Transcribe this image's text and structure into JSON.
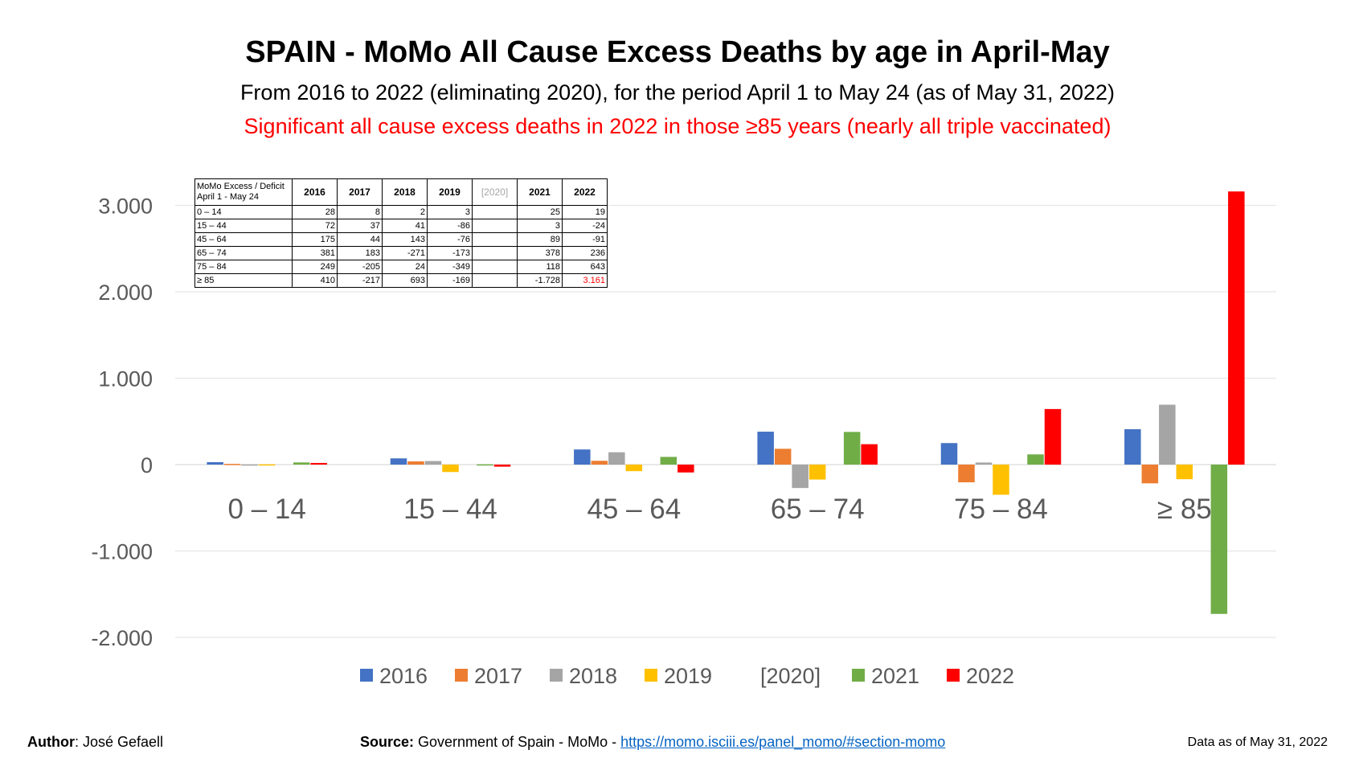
{
  "title": "SPAIN - MoMo All Cause Excess Deaths by age in April-May",
  "subtitle": "From 2016 to 2022 (eliminating 2020), for the period April 1 to May 24 (as of May 31, 2022)",
  "highlight": "Significant all cause excess deaths in 2022 in those ≥85 years (nearly all triple vaccinated)",
  "chart_data": {
    "type": "bar",
    "categories": [
      "0 – 14",
      "15 – 44",
      "45 – 64",
      "65 – 74",
      "75 – 84",
      "≥ 85"
    ],
    "series": [
      {
        "name": "2016",
        "color": "#4472c4",
        "values": [
          28,
          72,
          175,
          381,
          249,
          410
        ]
      },
      {
        "name": "2017",
        "color": "#ed7d31",
        "values": [
          8,
          37,
          44,
          183,
          -205,
          -217
        ]
      },
      {
        "name": "2018",
        "color": "#a5a5a5",
        "values": [
          2,
          41,
          143,
          -271,
          24,
          693
        ]
      },
      {
        "name": "2019",
        "color": "#ffc000",
        "values": [
          3,
          -86,
          -76,
          -173,
          -349,
          -169
        ]
      },
      {
        "name": "[2020]",
        "color": null,
        "values": [
          null,
          null,
          null,
          null,
          null,
          null
        ]
      },
      {
        "name": "2021",
        "color": "#70ad47",
        "values": [
          25,
          3,
          89,
          378,
          118,
          -1728
        ]
      },
      {
        "name": "2022",
        "color": "#ff0000",
        "values": [
          19,
          -24,
          -91,
          236,
          643,
          3161
        ]
      }
    ],
    "y_ticks": [
      3000,
      2000,
      1000,
      0,
      -1000,
      -2000
    ],
    "y_tick_labels": [
      "3.000",
      "2.000",
      "1.000",
      "0",
      "-1.000",
      "-2.000"
    ],
    "ylim": [
      -2000,
      3000
    ],
    "xlabel": "",
    "ylabel": "",
    "grid": true,
    "legend_position": "bottom"
  },
  "table": {
    "header_line1": "MoMo Excess / Deficit",
    "header_line2": "April 1 - May 24",
    "years": [
      "2016",
      "2017",
      "2018",
      "2019",
      "[2020]",
      "2021",
      "2022"
    ],
    "rows": [
      {
        "label": "0 – 14",
        "cells": [
          "28",
          "8",
          "2",
          "3",
          "",
          "25",
          "19"
        ]
      },
      {
        "label": "15 – 44",
        "cells": [
          "72",
          "37",
          "41",
          "-86",
          "",
          "3",
          "-24"
        ]
      },
      {
        "label": "45 – 64",
        "cells": [
          "175",
          "44",
          "143",
          "-76",
          "",
          "89",
          "-91"
        ]
      },
      {
        "label": "65 – 74",
        "cells": [
          "381",
          "183",
          "-271",
          "-173",
          "",
          "378",
          "236"
        ]
      },
      {
        "label": "75 – 84",
        "cells": [
          "249",
          "-205",
          "24",
          "-349",
          "",
          "118",
          "643"
        ]
      },
      {
        "label": "≥ 85",
        "cells": [
          "410",
          "-217",
          "693",
          "-169",
          "",
          "-1.728",
          "3.161"
        ]
      }
    ]
  },
  "footer": {
    "author_label": "Author",
    "author_name": ": José Gefaell",
    "source_label": "Source:",
    "source_text": " Government of Spain - MoMo - ",
    "source_link": "https://momo.isciii.es/panel_momo/#section-momo",
    "as_of": "Data as of May 31, 2022"
  }
}
